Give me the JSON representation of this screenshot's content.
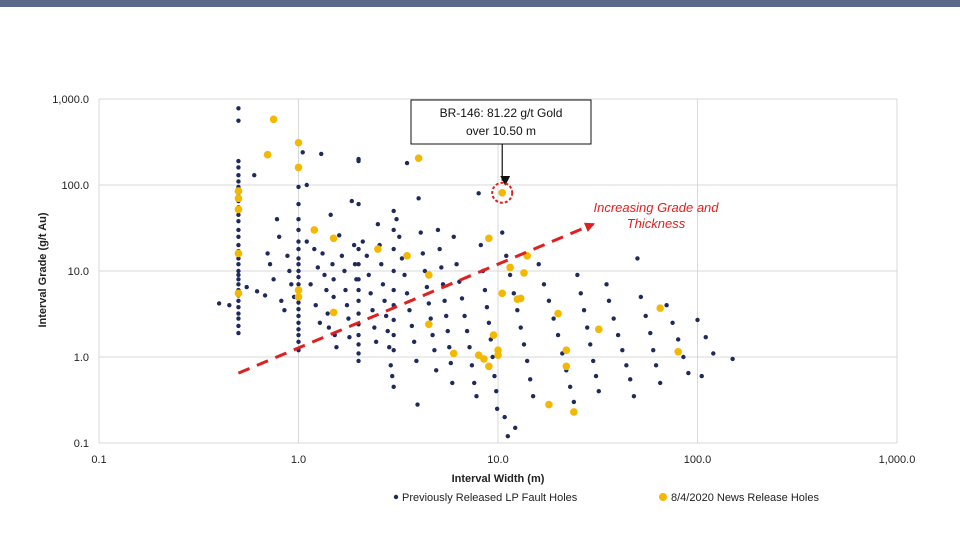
{
  "colors": {
    "header_bar": "#5a6a8a",
    "series_previous": "#1f2a5c",
    "series_news": "#f5b800",
    "trend_arrow": "#e02020",
    "grid": "#d9d9d9"
  },
  "chart_data": {
    "type": "scatter",
    "xscale": "log",
    "yscale": "log",
    "xlim": [
      0.1,
      1000
    ],
    "ylim": [
      0.1,
      1000
    ],
    "xlabel": "Interval Width (m)",
    "ylabel": "Interval Grade (g/t Au)",
    "x_ticks": [
      0.1,
      1,
      10,
      100,
      1000
    ],
    "x_tick_labels": [
      "0.1",
      "1.0",
      "10.0",
      "100.0",
      "1,000.0"
    ],
    "y_ticks": [
      0.1,
      1,
      10,
      100,
      1000
    ],
    "y_tick_labels": [
      "0.1",
      "1.0",
      "10.0",
      "100.0",
      "1,000.0"
    ],
    "grid": "major",
    "legend_position": "bottom",
    "series": [
      {
        "name": "Previously Released LP Fault Holes",
        "points": [
          [
            0.4,
            4.2
          ],
          [
            0.45,
            4.0
          ],
          [
            0.5,
            780
          ],
          [
            0.5,
            560
          ],
          [
            0.5,
            190
          ],
          [
            0.5,
            160
          ],
          [
            0.5,
            130
          ],
          [
            0.5,
            110
          ],
          [
            0.5,
            95
          ],
          [
            0.5,
            80
          ],
          [
            0.5,
            65
          ],
          [
            0.5,
            55
          ],
          [
            0.5,
            45
          ],
          [
            0.5,
            38
          ],
          [
            0.5,
            30
          ],
          [
            0.5,
            25
          ],
          [
            0.5,
            20
          ],
          [
            0.5,
            17
          ],
          [
            0.5,
            14
          ],
          [
            0.5,
            12
          ],
          [
            0.5,
            10
          ],
          [
            0.5,
            9
          ],
          [
            0.5,
            8
          ],
          [
            0.5,
            7
          ],
          [
            0.5,
            6
          ],
          [
            0.5,
            5.2
          ],
          [
            0.5,
            4.5
          ],
          [
            0.5,
            3.8
          ],
          [
            0.5,
            3.2
          ],
          [
            0.5,
            2.8
          ],
          [
            0.5,
            2.3
          ],
          [
            0.5,
            1.9
          ],
          [
            0.55,
            6.5
          ],
          [
            0.6,
            130
          ],
          [
            0.62,
            5.8
          ],
          [
            0.68,
            5.2
          ],
          [
            0.7,
            16
          ],
          [
            0.72,
            12
          ],
          [
            0.75,
            8
          ],
          [
            0.78,
            40
          ],
          [
            0.8,
            25
          ],
          [
            0.82,
            4.5
          ],
          [
            0.85,
            3.5
          ],
          [
            0.88,
            15
          ],
          [
            0.9,
            10
          ],
          [
            0.92,
            7
          ],
          [
            0.95,
            5
          ],
          [
            1.0,
            95
          ],
          [
            1.0,
            60
          ],
          [
            1.0,
            40
          ],
          [
            1.0,
            30
          ],
          [
            1.0,
            22
          ],
          [
            1.0,
            18
          ],
          [
            1.0,
            14
          ],
          [
            1.0,
            12
          ],
          [
            1.0,
            10
          ],
          [
            1.0,
            8.5
          ],
          [
            1.0,
            7
          ],
          [
            1.0,
            6
          ],
          [
            1.0,
            5
          ],
          [
            1.0,
            4.3
          ],
          [
            1.0,
            3.6
          ],
          [
            1.0,
            3
          ],
          [
            1.0,
            2.5
          ],
          [
            1.0,
            2.1
          ],
          [
            1.0,
            1.8
          ],
          [
            1.0,
            1.5
          ],
          [
            1.0,
            1.2
          ],
          [
            1.05,
            240
          ],
          [
            1.1,
            100
          ],
          [
            1.1,
            22
          ],
          [
            1.15,
            7
          ],
          [
            1.2,
            18
          ],
          [
            1.22,
            4
          ],
          [
            1.25,
            11
          ],
          [
            1.28,
            2.5
          ],
          [
            1.3,
            230
          ],
          [
            1.32,
            16
          ],
          [
            1.35,
            9
          ],
          [
            1.38,
            6
          ],
          [
            1.4,
            3.2
          ],
          [
            1.42,
            2.2
          ],
          [
            1.45,
            45
          ],
          [
            1.48,
            12
          ],
          [
            1.5,
            8
          ],
          [
            1.5,
            5
          ],
          [
            1.52,
            1.8
          ],
          [
            1.55,
            1.3
          ],
          [
            1.6,
            26
          ],
          [
            1.65,
            15
          ],
          [
            1.7,
            10
          ],
          [
            1.72,
            6
          ],
          [
            1.75,
            4
          ],
          [
            1.78,
            2.8
          ],
          [
            1.8,
            1.7
          ],
          [
            1.85,
            65
          ],
          [
            1.9,
            20
          ],
          [
            1.92,
            12
          ],
          [
            1.95,
            8
          ],
          [
            2.0,
            200
          ],
          [
            2.0,
            190
          ],
          [
            2.0,
            60
          ],
          [
            2.0,
            18
          ],
          [
            2.0,
            12
          ],
          [
            2.0,
            8
          ],
          [
            2.0,
            6
          ],
          [
            2.0,
            4.5
          ],
          [
            2.0,
            3.2
          ],
          [
            2.0,
            2.4
          ],
          [
            2.0,
            1.8
          ],
          [
            2.0,
            1.4
          ],
          [
            2.0,
            1.1
          ],
          [
            2.0,
            0.9
          ],
          [
            2.1,
            22
          ],
          [
            2.2,
            15
          ],
          [
            2.25,
            9
          ],
          [
            2.3,
            5.5
          ],
          [
            2.35,
            3.5
          ],
          [
            2.4,
            2.2
          ],
          [
            2.45,
            1.5
          ],
          [
            2.5,
            35
          ],
          [
            2.55,
            20
          ],
          [
            2.6,
            12
          ],
          [
            2.65,
            7
          ],
          [
            2.7,
            4.5
          ],
          [
            2.75,
            3
          ],
          [
            2.8,
            2
          ],
          [
            2.85,
            1.3
          ],
          [
            2.9,
            0.8
          ],
          [
            2.95,
            0.6
          ],
          [
            3.0,
            50
          ],
          [
            3.0,
            30
          ],
          [
            3.0,
            18
          ],
          [
            3.0,
            10
          ],
          [
            3.0,
            6
          ],
          [
            3.0,
            4
          ],
          [
            3.0,
            2.7
          ],
          [
            3.0,
            1.8
          ],
          [
            3.0,
            1.2
          ],
          [
            3.0,
            0.45
          ],
          [
            3.1,
            40
          ],
          [
            3.2,
            25
          ],
          [
            3.3,
            14
          ],
          [
            3.4,
            9
          ],
          [
            3.5,
            180
          ],
          [
            3.5,
            5.5
          ],
          [
            3.6,
            3.5
          ],
          [
            3.7,
            2.3
          ],
          [
            3.8,
            1.5
          ],
          [
            3.9,
            0.9
          ],
          [
            3.95,
            0.28
          ],
          [
            4.0,
            70
          ],
          [
            4.1,
            28
          ],
          [
            4.2,
            16
          ],
          [
            4.3,
            10
          ],
          [
            4.4,
            6.5
          ],
          [
            4.5,
            4.2
          ],
          [
            4.6,
            2.8
          ],
          [
            4.7,
            1.8
          ],
          [
            4.8,
            1.2
          ],
          [
            4.9,
            0.7
          ],
          [
            5.0,
            30
          ],
          [
            5.1,
            18
          ],
          [
            5.2,
            11
          ],
          [
            5.3,
            7
          ],
          [
            5.4,
            4.5
          ],
          [
            5.5,
            3
          ],
          [
            5.6,
            2
          ],
          [
            5.7,
            1.3
          ],
          [
            5.8,
            0.85
          ],
          [
            5.9,
            0.5
          ],
          [
            6.0,
            25
          ],
          [
            6.2,
            12
          ],
          [
            6.4,
            7.5
          ],
          [
            6.6,
            4.8
          ],
          [
            6.8,
            3
          ],
          [
            7.0,
            2
          ],
          [
            7.2,
            1.3
          ],
          [
            7.4,
            0.8
          ],
          [
            7.6,
            0.5
          ],
          [
            7.8,
            0.35
          ],
          [
            8.0,
            80
          ],
          [
            8.2,
            20
          ],
          [
            8.4,
            10
          ],
          [
            8.6,
            6
          ],
          [
            8.8,
            3.8
          ],
          [
            9.0,
            2.5
          ],
          [
            9.2,
            1.6
          ],
          [
            9.4,
            1
          ],
          [
            9.6,
            0.6
          ],
          [
            9.8,
            0.4
          ],
          [
            9.9,
            0.25
          ],
          [
            10.5,
            28
          ],
          [
            11,
            15
          ],
          [
            11.5,
            9
          ],
          [
            12,
            5.5
          ],
          [
            12.5,
            3.5
          ],
          [
            13,
            2.2
          ],
          [
            13.5,
            1.4
          ],
          [
            14,
            0.9
          ],
          [
            14.5,
            0.55
          ],
          [
            15,
            0.35
          ],
          [
            10.8,
            0.2
          ],
          [
            12.2,
            0.15
          ],
          [
            11.2,
            0.12
          ],
          [
            16,
            12
          ],
          [
            17,
            7
          ],
          [
            18,
            4.5
          ],
          [
            19,
            2.8
          ],
          [
            20,
            1.8
          ],
          [
            21,
            1.1
          ],
          [
            22,
            0.7
          ],
          [
            23,
            0.45
          ],
          [
            24,
            0.3
          ],
          [
            25,
            9
          ],
          [
            26,
            5.5
          ],
          [
            27,
            3.5
          ],
          [
            28,
            2.2
          ],
          [
            29,
            1.4
          ],
          [
            30,
            0.9
          ],
          [
            31,
            0.6
          ],
          [
            32,
            0.4
          ],
          [
            35,
            7
          ],
          [
            36,
            4.5
          ],
          [
            38,
            2.8
          ],
          [
            40,
            1.8
          ],
          [
            42,
            1.2
          ],
          [
            44,
            0.8
          ],
          [
            46,
            0.55
          ],
          [
            48,
            0.35
          ],
          [
            50,
            14
          ],
          [
            52,
            5
          ],
          [
            55,
            3
          ],
          [
            58,
            1.9
          ],
          [
            60,
            1.2
          ],
          [
            62,
            0.8
          ],
          [
            65,
            0.5
          ],
          [
            70,
            4
          ],
          [
            75,
            2.5
          ],
          [
            80,
            1.6
          ],
          [
            85,
            1
          ],
          [
            90,
            0.65
          ],
          [
            100,
            2.7
          ],
          [
            105,
            0.6
          ],
          [
            110,
            1.7
          ],
          [
            120,
            1.1
          ],
          [
            150,
            0.95
          ]
        ]
      },
      {
        "name": "8/4/2020 News Release Holes",
        "points": [
          [
            0.5,
            85
          ],
          [
            0.5,
            70
          ],
          [
            0.5,
            52
          ],
          [
            0.5,
            16
          ],
          [
            0.5,
            5.5
          ],
          [
            0.7,
            225
          ],
          [
            0.75,
            580
          ],
          [
            1.0,
            310
          ],
          [
            1.0,
            160
          ],
          [
            1.0,
            6
          ],
          [
            1.0,
            5
          ],
          [
            1.2,
            30
          ],
          [
            1.5,
            24
          ],
          [
            1.5,
            3.3
          ],
          [
            2.5,
            18
          ],
          [
            3.5,
            15
          ],
          [
            4.0,
            205
          ],
          [
            4.5,
            9
          ],
          [
            4.5,
            2.4
          ],
          [
            6.0,
            1.1
          ],
          [
            8.0,
            1.05
          ],
          [
            8.5,
            0.95
          ],
          [
            9.0,
            24
          ],
          [
            9.0,
            0.78
          ],
          [
            9.5,
            1.8
          ],
          [
            10.0,
            1.2
          ],
          [
            10.0,
            1.05
          ],
          [
            10.5,
            81.22
          ],
          [
            10.5,
            5.5
          ],
          [
            11.5,
            11
          ],
          [
            12.5,
            4.7
          ],
          [
            13.0,
            4.8
          ],
          [
            13.5,
            9.5
          ],
          [
            14.0,
            15
          ],
          [
            18.0,
            0.28
          ],
          [
            20.0,
            3.2
          ],
          [
            22.0,
            0.78
          ],
          [
            22.0,
            1.2
          ],
          [
            24.0,
            0.23
          ],
          [
            32.0,
            2.1
          ],
          [
            65.0,
            3.7
          ],
          [
            80.0,
            1.15
          ]
        ]
      }
    ],
    "annotations": [
      {
        "text_line1": "BR-146: 81.22 g/t Gold",
        "text_line2": "over 10.50 m",
        "x": 10.5,
        "y": 81.22
      },
      {
        "text_line1": "Increasing Grade and",
        "text_line2": "Thickness",
        "from": [
          0.5,
          0.65
        ],
        "to": [
          30,
          35
        ]
      }
    ]
  }
}
